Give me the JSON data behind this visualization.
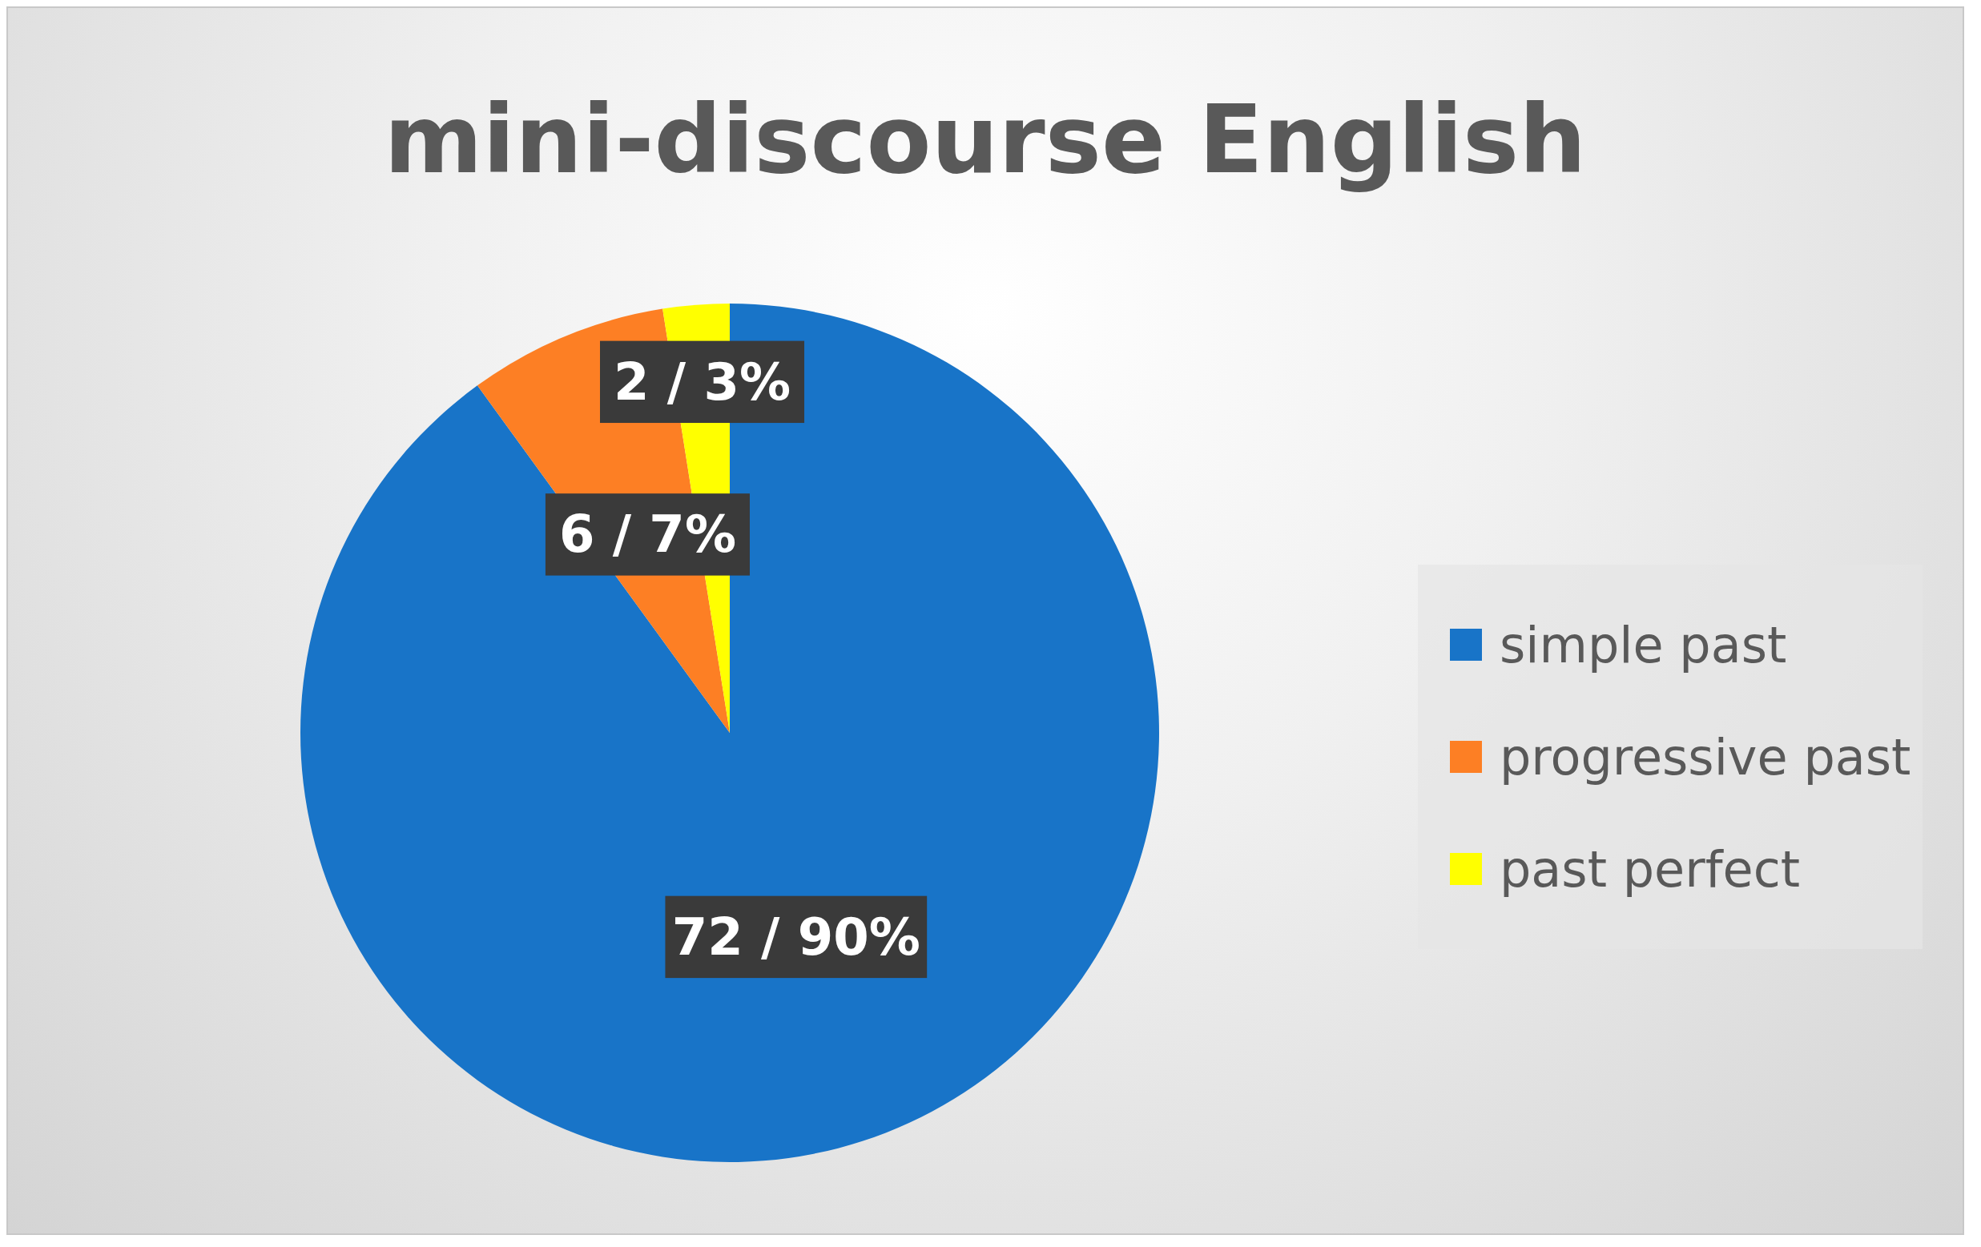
{
  "chart_data": {
    "type": "pie",
    "title": "mini-discourse English",
    "categories": [
      "simple past",
      "progressive past",
      "past perfect"
    ],
    "values": [
      72,
      6,
      2
    ],
    "colors": [
      "#1874c8",
      "#fd7f24",
      "#ffff00"
    ],
    "value_labels": [
      "72 / 90%",
      "6 / 7%",
      "2 / 3%"
    ],
    "legend": "right"
  }
}
